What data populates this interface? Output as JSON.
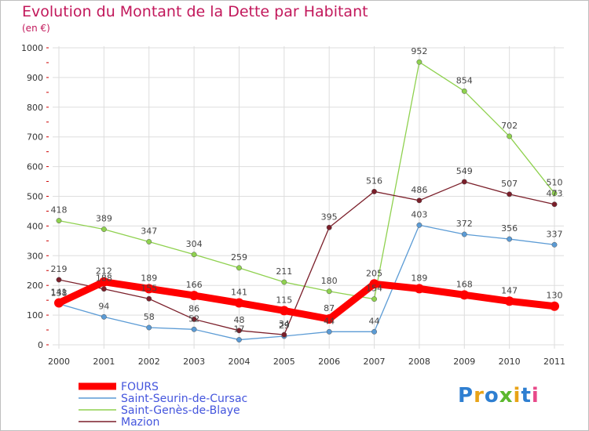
{
  "title": "Evolution du Montant de la Dette par Habitant",
  "subtitle": "(en €)",
  "logo_text": "Proxiti",
  "colors": {
    "title": "#c2185b",
    "legend_text": "#4455dd",
    "grid": "#dddddd",
    "axis_tick": "#cc0000"
  },
  "chart_data": {
    "type": "line",
    "title": "Evolution du Montant de la Dette par Habitant",
    "subtitle": "(en €)",
    "xlabel": "",
    "ylabel": "",
    "ylim": [
      0,
      1000
    ],
    "yticks": [
      0,
      100,
      200,
      300,
      400,
      500,
      600,
      700,
      800,
      900,
      1000
    ],
    "grid": true,
    "legend_position": "bottom-left",
    "x": [
      "2000",
      "2001",
      "2002",
      "2003",
      "2004",
      "2005",
      "2006",
      "2007",
      "2008",
      "2009",
      "2010",
      "2011"
    ],
    "series": [
      {
        "name": "FOURS",
        "color": "#ff0000",
        "values": [
          141,
          212,
          189,
          166,
          141,
          115,
          87,
          205,
          189,
          168,
          147,
          130
        ]
      },
      {
        "name": "Saint-Seurin-de-Cursac",
        "color": "#5b9bd5",
        "values": [
          138,
          94,
          58,
          52,
          17,
          29,
          44,
          44,
          403,
          372,
          356,
          337
        ]
      },
      {
        "name": "Saint-Genès-de-Blaye",
        "color": "#8fd14f",
        "values": [
          418,
          389,
          347,
          304,
          259,
          211,
          180,
          154,
          952,
          854,
          702,
          510
        ]
      },
      {
        "name": "Mazion",
        "color": "#7b1f2a",
        "values": [
          219,
          188,
          155,
          86,
          48,
          34,
          395,
          516,
          486,
          549,
          507,
          473
        ]
      }
    ]
  }
}
